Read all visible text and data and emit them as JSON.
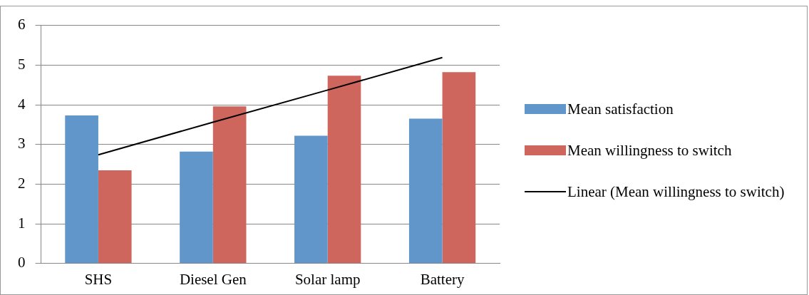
{
  "chart_data": {
    "type": "bar",
    "categories": [
      "SHS",
      "Diesel Gen",
      "Solar lamp",
      "Battery"
    ],
    "series": [
      {
        "name": "Mean satisfaction",
        "color": "#6096c9",
        "values": [
          3.73,
          2.82,
          3.22,
          3.65
        ]
      },
      {
        "name": "Mean willingness to switch",
        "color": "#cf665e",
        "values": [
          2.35,
          3.96,
          4.73,
          4.82
        ]
      },
      {
        "name": "Linear (Mean willingness to switch)",
        "type": "line",
        "color": "#000000",
        "values": [
          2.74,
          3.56,
          4.37,
          5.19
        ]
      }
    ],
    "ylim": [
      0,
      6
    ],
    "yticks": [
      0,
      1,
      2,
      3,
      4,
      5,
      6
    ],
    "grid": "y",
    "legend": "right"
  }
}
